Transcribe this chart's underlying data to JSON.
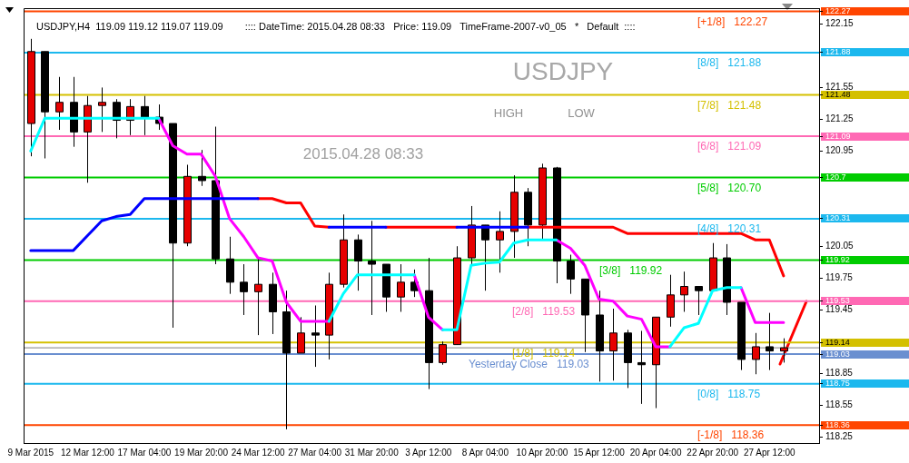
{
  "chart_data": {
    "type": "candlestick",
    "title": "USDJPY,H4  119.09 119.12 119.07 119.09",
    "subtitle": ":::: DateTime: 2015.04.28 08:33   Price: 119.09   TimeFrame-2007-v0_05   *   Default  ::::",
    "categories": [
      "9 Mar 2015",
      null,
      null,
      null,
      "12 Mar 12:00",
      null,
      null,
      null,
      "17 Mar 04:00",
      null,
      null,
      null,
      "19 Mar 20:00",
      null,
      null,
      null,
      "24 Mar 12:00",
      null,
      null,
      null,
      "27 Mar 04:00",
      null,
      null,
      null,
      "31 Mar 20:00",
      null,
      null,
      null,
      "3 Apr 12:00",
      null,
      null,
      null,
      "8 Apr 04:00",
      null,
      null,
      null,
      "10 Apr 20:00",
      null,
      null,
      null,
      "15 Apr 12:00",
      null,
      null,
      null,
      "20 Apr 04:00",
      null,
      null,
      null,
      "22 Apr 20:00",
      null,
      null,
      null,
      "27 Apr 12:00",
      null,
      null,
      null
    ],
    "ohlc": [
      [
        121.21,
        122.01,
        120.9,
        121.89
      ],
      [
        121.89,
        121.89,
        120.88,
        121.32
      ],
      [
        121.32,
        121.65,
        121.15,
        121.41
      ],
      [
        121.41,
        121.65,
        120.99,
        121.13
      ],
      [
        121.13,
        121.47,
        120.65,
        121.38
      ],
      [
        121.38,
        121.55,
        121.13,
        121.41
      ],
      [
        121.41,
        121.44,
        121.07,
        121.24
      ],
      [
        121.24,
        121.44,
        121.1,
        121.37
      ],
      [
        121.37,
        121.47,
        121.1,
        121.27
      ],
      [
        121.27,
        121.39,
        121.15,
        121.21
      ],
      [
        121.21,
        121.21,
        119.28,
        120.08
      ],
      [
        120.08,
        120.82,
        120.05,
        120.71
      ],
      [
        120.71,
        120.96,
        120.62,
        120.67
      ],
      [
        120.67,
        121.18,
        119.88,
        119.93
      ],
      [
        119.93,
        120.14,
        119.6,
        119.71
      ],
      [
        119.71,
        119.88,
        119.4,
        119.62
      ],
      [
        119.62,
        119.94,
        119.21,
        119.69
      ],
      [
        119.69,
        119.8,
        119.22,
        119.43
      ],
      [
        119.43,
        119.63,
        118.32,
        119.04
      ],
      [
        119.04,
        119.38,
        119.04,
        119.23
      ],
      [
        119.23,
        119.49,
        118.91,
        119.21
      ],
      [
        119.21,
        119.8,
        118.98,
        119.69
      ],
      [
        119.69,
        120.35,
        119.66,
        120.11
      ],
      [
        120.11,
        120.16,
        119.63,
        119.91
      ],
      [
        119.91,
        120.29,
        119.4,
        119.88
      ],
      [
        119.88,
        119.88,
        119.43,
        119.57
      ],
      [
        119.57,
        119.88,
        119.43,
        119.71
      ],
      [
        119.71,
        119.83,
        119.57,
        119.63
      ],
      [
        119.63,
        119.94,
        118.7,
        118.95
      ],
      [
        118.95,
        119.15,
        118.93,
        119.12
      ],
      [
        119.12,
        120.05,
        119.12,
        119.94
      ],
      [
        119.94,
        120.43,
        119.88,
        120.25
      ],
      [
        120.25,
        120.25,
        119.63,
        120.11
      ],
      [
        120.11,
        120.38,
        119.8,
        120.19
      ],
      [
        120.19,
        120.72,
        119.94,
        120.56
      ],
      [
        120.56,
        120.6,
        120.05,
        120.25
      ],
      [
        120.25,
        120.83,
        120.11,
        120.79
      ],
      [
        120.79,
        120.8,
        119.7,
        119.91
      ],
      [
        119.91,
        119.97,
        119.6,
        119.74
      ],
      [
        119.74,
        119.74,
        119.05,
        119.4
      ],
      [
        119.4,
        119.63,
        118.77,
        119.06
      ],
      [
        119.06,
        119.46,
        118.78,
        119.23
      ],
      [
        119.23,
        119.26,
        118.71,
        118.95
      ],
      [
        118.95,
        119.25,
        118.56,
        118.93
      ],
      [
        118.93,
        119.38,
        118.52,
        119.38
      ],
      [
        119.38,
        119.78,
        119.29,
        119.59
      ],
      [
        119.59,
        119.81,
        119.43,
        119.67
      ],
      [
        119.67,
        119.67,
        119.4,
        119.63
      ],
      [
        119.63,
        120.08,
        119.63,
        119.94
      ],
      [
        119.94,
        120.07,
        119.4,
        119.52
      ],
      [
        119.52,
        119.52,
        118.88,
        118.98
      ],
      [
        118.98,
        119.23,
        118.84,
        119.1
      ],
      [
        119.1,
        119.42,
        118.88,
        119.06
      ],
      [
        119.06,
        119.18,
        118.95,
        119.09
      ],
      null,
      null
    ],
    "colors": [
      "#e60000",
      "#000000",
      "#e60000",
      "#000000",
      "#e60000",
      "#e60000",
      "#000000",
      "#e60000",
      "#000000",
      "#000000",
      "#000000",
      "#e60000",
      "#000000",
      "#000000",
      "#000000",
      "#000000",
      "#e60000",
      "#000000",
      "#000000",
      "#e60000",
      "#000000",
      "#e60000",
      "#e60000",
      "#000000",
      "#000000",
      "#000000",
      "#e60000",
      "#000000",
      "#000000",
      "#e60000",
      "#e60000",
      "#e60000",
      "#000000",
      "#e60000",
      "#e60000",
      "#000000",
      "#e60000",
      "#000000",
      "#000000",
      "#000000",
      "#000000",
      "#e60000",
      "#000000",
      "#000000",
      "#e60000",
      "#e60000",
      "#e60000",
      "#000000",
      "#e60000",
      "#000000",
      "#000000",
      "#e60000",
      "#000000",
      "#e60000",
      null,
      null
    ],
    "series": [
      {
        "type": "line",
        "color": "#0000ff",
        "values": [
          120.01,
          120.01,
          120.01,
          120.01,
          120.15,
          120.29,
          120.33,
          120.35,
          120.5,
          120.5,
          120.5,
          120.5,
          120.5,
          120.5,
          120.5,
          120.5,
          120.5,
          null,
          null,
          null,
          null,
          120.23,
          120.23,
          120.23,
          120.23,
          120.23,
          null,
          null,
          null,
          null,
          120.23,
          120.23,
          120.23,
          120.23,
          120.23,
          120.23,
          null,
          null,
          null,
          null,
          null,
          null,
          null,
          null,
          null,
          null,
          null,
          null,
          null,
          null,
          null,
          null,
          null,
          null,
          null,
          null
        ]
      },
      {
        "type": "line",
        "color": "#ff0000",
        "values": [
          null,
          null,
          null,
          null,
          null,
          null,
          null,
          null,
          null,
          null,
          null,
          null,
          null,
          null,
          null,
          null,
          120.5,
          120.5,
          120.46,
          120.46,
          120.24,
          120.23,
          null,
          null,
          null,
          120.23,
          120.23,
          120.23,
          120.23,
          120.23,
          120.23,
          null,
          null,
          null,
          null,
          120.23,
          120.23,
          120.23,
          120.23,
          120.23,
          120.23,
          120.23,
          120.17,
          120.17,
          120.17,
          120.17,
          120.17,
          120.17,
          120.17,
          120.17,
          120.17,
          120.11,
          120.11,
          119.77,
          null,
          null
        ]
      },
      {
        "type": "line",
        "color": "#00ffff",
        "values": [
          120.95,
          121.26,
          121.26,
          121.26,
          121.26,
          121.26,
          121.26,
          121.26,
          121.26,
          121.26,
          null,
          null,
          null,
          null,
          null,
          null,
          null,
          null,
          null,
          null,
          null,
          119.34,
          119.6,
          119.78,
          119.78,
          119.78,
          119.78,
          119.78,
          null,
          119.26,
          119.26,
          119.87,
          119.89,
          119.9,
          120.08,
          120.11,
          120.11,
          120.11,
          null,
          null,
          null,
          null,
          null,
          null,
          null,
          119.1,
          119.28,
          119.32,
          119.63,
          119.66,
          119.66,
          null,
          null,
          null,
          null,
          null
        ]
      },
      {
        "type": "line",
        "color": "#ff00ff",
        "values": [
          null,
          null,
          null,
          null,
          null,
          null,
          null,
          null,
          null,
          121.26,
          121.0,
          120.92,
          120.92,
          120.71,
          120.31,
          120.14,
          119.94,
          119.91,
          119.52,
          119.34,
          119.34,
          119.34,
          null,
          null,
          null,
          null,
          null,
          119.78,
          119.38,
          119.26,
          null,
          null,
          null,
          null,
          null,
          null,
          null,
          120.11,
          120.03,
          119.87,
          119.55,
          119.53,
          119.39,
          119.36,
          119.1,
          119.1,
          null,
          null,
          null,
          null,
          119.66,
          119.33,
          119.33,
          119.33,
          null,
          null
        ]
      }
    ],
    "ylim": [
      118.19,
      122.3
    ],
    "yticks": [
      122.27,
      122.15,
      121.88,
      121.55,
      121.48,
      121.25,
      121.09,
      120.95,
      120.7,
      120.31,
      120.05,
      119.92,
      119.75,
      119.53,
      119.45,
      119.14,
      119.03,
      118.85,
      118.75,
      118.55,
      118.36,
      118.25
    ],
    "ref_lines": [
      {
        "axis": "y",
        "value": 122.27,
        "label": "[+1/8]   122.27",
        "color": "#ff4500"
      },
      {
        "axis": "y",
        "value": 121.88,
        "label": "[8/8]   121.88",
        "color": "#1cb8ee"
      },
      {
        "axis": "y",
        "value": 121.48,
        "label": "[7/8]   121.48",
        "color": "#d4c000"
      },
      {
        "axis": "y",
        "value": 121.09,
        "label": "[6/8]   121.09",
        "color": "#ff69b4"
      },
      {
        "axis": "y",
        "value": 120.7,
        "label": "[5/8]   120.70",
        "color": "#00cc00"
      },
      {
        "axis": "y",
        "value": 120.31,
        "label": "[4/8]   120.31",
        "color": "#1cb8ee"
      },
      {
        "axis": "y",
        "value": 119.92,
        "label": "[3/8]   119.92",
        "color": "#00cc00"
      },
      {
        "axis": "y",
        "value": 119.53,
        "label": "[2/8]   119.53",
        "color": "#ff69b4"
      },
      {
        "axis": "y",
        "value": 119.14,
        "label": "[1/8]   119.14",
        "color": "#d4c000"
      },
      {
        "axis": "y",
        "value": 118.75,
        "label": "[0/8]   118.75",
        "color": "#1cb8ee"
      },
      {
        "axis": "y",
        "value": 118.36,
        "label": "[-1/8]   118.36",
        "color": "#ff4500"
      },
      {
        "axis": "y",
        "value": 119.09,
        "label": null,
        "color": "#808080"
      },
      {
        "axis": "y",
        "value": 119.03,
        "label": "Yesterday Close   119.03",
        "color": "#6a8fd0"
      }
    ],
    "annotations": [
      "USDJPY",
      "HIGH",
      "LOW",
      "2015.04.28 08:33"
    ],
    "marker": "none",
    "line_style": "solid"
  }
}
